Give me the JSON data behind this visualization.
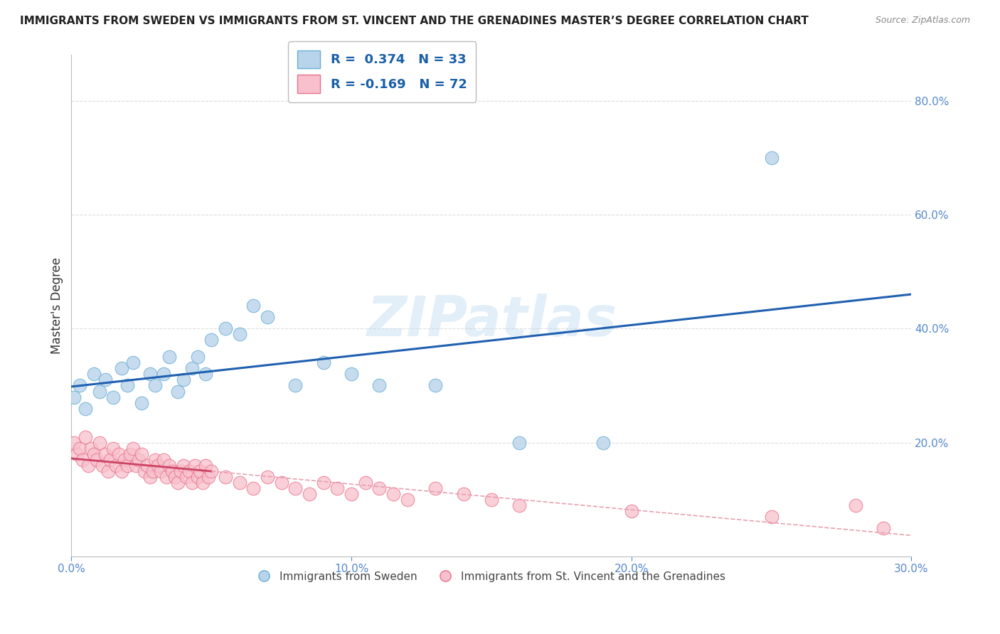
{
  "title": "IMMIGRANTS FROM SWEDEN VS IMMIGRANTS FROM ST. VINCENT AND THE GRENADINES MASTER’S DEGREE CORRELATION CHART",
  "source": "Source: ZipAtlas.com",
  "ylabel": "Master's Degree",
  "xlim": [
    0.0,
    0.3
  ],
  "ylim": [
    0.0,
    0.88
  ],
  "xtick_labels": [
    "0.0%",
    "10.0%",
    "20.0%",
    "30.0%"
  ],
  "xtick_values": [
    0.0,
    0.1,
    0.2,
    0.3
  ],
  "ytick_labels": [
    "20.0%",
    "40.0%",
    "60.0%",
    "80.0%"
  ],
  "ytick_values": [
    0.2,
    0.4,
    0.6,
    0.8
  ],
  "sweden_color": "#b8d4ea",
  "sweden_edge_color": "#6aaed6",
  "svg_color": "#f7c0cc",
  "svg_edge_color": "#e8708a",
  "trend_sweden_color": "#2060b0",
  "trend_svg_color": "#cc4466",
  "trend_svg_dash_color": "#e8a0b0",
  "R_sweden": 0.374,
  "N_sweden": 33,
  "R_svg": -0.169,
  "N_svg": 72,
  "watermark": "ZIPatlas",
  "background_color": "#ffffff",
  "grid_color": "#cccccc",
  "legend_label_sweden": "Immigrants from Sweden",
  "legend_label_svg": "Immigrants from St. Vincent and the Grenadines",
  "sweden_x": [
    0.001,
    0.003,
    0.005,
    0.008,
    0.01,
    0.012,
    0.015,
    0.018,
    0.02,
    0.022,
    0.025,
    0.028,
    0.03,
    0.033,
    0.035,
    0.038,
    0.04,
    0.043,
    0.045,
    0.048,
    0.05,
    0.055,
    0.06,
    0.065,
    0.07,
    0.08,
    0.09,
    0.1,
    0.11,
    0.13,
    0.16,
    0.19,
    0.25
  ],
  "sweden_y": [
    0.28,
    0.3,
    0.26,
    0.32,
    0.29,
    0.31,
    0.28,
    0.33,
    0.3,
    0.34,
    0.27,
    0.32,
    0.3,
    0.32,
    0.35,
    0.29,
    0.31,
    0.33,
    0.35,
    0.32,
    0.38,
    0.4,
    0.39,
    0.44,
    0.42,
    0.3,
    0.34,
    0.32,
    0.3,
    0.3,
    0.2,
    0.2,
    0.7
  ],
  "svg_x": [
    0.001,
    0.002,
    0.003,
    0.004,
    0.005,
    0.006,
    0.007,
    0.008,
    0.009,
    0.01,
    0.011,
    0.012,
    0.013,
    0.014,
    0.015,
    0.016,
    0.017,
    0.018,
    0.019,
    0.02,
    0.021,
    0.022,
    0.023,
    0.024,
    0.025,
    0.026,
    0.027,
    0.028,
    0.029,
    0.03,
    0.031,
    0.032,
    0.033,
    0.034,
    0.035,
    0.036,
    0.037,
    0.038,
    0.039,
    0.04,
    0.041,
    0.042,
    0.043,
    0.044,
    0.045,
    0.046,
    0.047,
    0.048,
    0.049,
    0.05,
    0.055,
    0.06,
    0.065,
    0.07,
    0.075,
    0.08,
    0.085,
    0.09,
    0.095,
    0.1,
    0.105,
    0.11,
    0.115,
    0.12,
    0.13,
    0.14,
    0.15,
    0.16,
    0.2,
    0.25,
    0.28,
    0.29
  ],
  "svg_y": [
    0.2,
    0.18,
    0.19,
    0.17,
    0.21,
    0.16,
    0.19,
    0.18,
    0.17,
    0.2,
    0.16,
    0.18,
    0.15,
    0.17,
    0.19,
    0.16,
    0.18,
    0.15,
    0.17,
    0.16,
    0.18,
    0.19,
    0.16,
    0.17,
    0.18,
    0.15,
    0.16,
    0.14,
    0.15,
    0.17,
    0.16,
    0.15,
    0.17,
    0.14,
    0.16,
    0.15,
    0.14,
    0.13,
    0.15,
    0.16,
    0.14,
    0.15,
    0.13,
    0.16,
    0.14,
    0.15,
    0.13,
    0.16,
    0.14,
    0.15,
    0.14,
    0.13,
    0.12,
    0.14,
    0.13,
    0.12,
    0.11,
    0.13,
    0.12,
    0.11,
    0.13,
    0.12,
    0.11,
    0.1,
    0.12,
    0.11,
    0.1,
    0.09,
    0.08,
    0.07,
    0.09,
    0.05
  ]
}
